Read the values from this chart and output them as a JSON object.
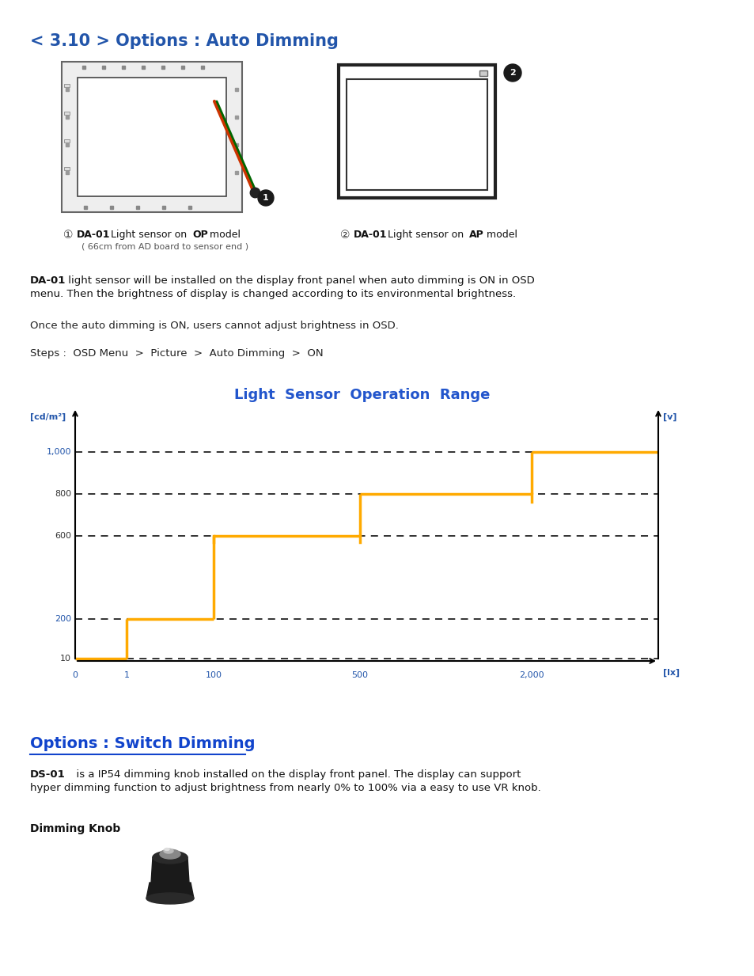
{
  "title1": "< 3.10 > Options : Auto Dimming",
  "title1_color": "#2255aa",
  "title2": "Options : Switch Dimming",
  "title2_color": "#1144cc",
  "chart_title": "Light  Sensor  Operation  Range",
  "chart_title_color": "#2255cc",
  "y_label": "[cd/m²]",
  "y_label_color": "#2255aa",
  "x_label": "[lx]",
  "x_label_color": "#2255aa",
  "right_label": "[v]",
  "right_label_color": "#2255aa",
  "x_ticks": [
    0,
    1,
    100,
    500,
    2000
  ],
  "x_tick_labels": [
    "0",
    "1",
    "100",
    "500",
    "2,000"
  ],
  "y_ticks": [
    10,
    200,
    600,
    800,
    1000
  ],
  "y_tick_labels": [
    "10",
    "200",
    "600",
    "800",
    "1,000"
  ],
  "y_tick_colors": [
    "#333333",
    "#2255aa",
    "#333333",
    "#333333",
    "#2255aa"
  ],
  "orange_color": "#FFAA00",
  "caption1_sub": "( 66cm from AD board to sensor end )",
  "ds01_text": "  is a IP54 dimming knob installed on the display front panel. The display can support",
  "ds01_text2": "hyper dimming function to adjust brightness from nearly 0% to 100% via a easy to use VR knob.",
  "dimming_knob_label": "Dimming Knob",
  "bg_color": "#ffffff"
}
